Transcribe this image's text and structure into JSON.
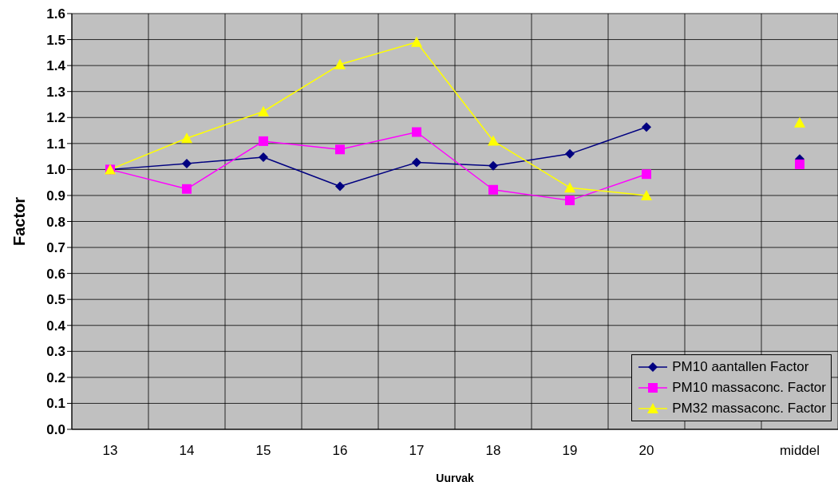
{
  "chart_data": {
    "type": "line",
    "xlabel": "Uurvak",
    "ylabel": "Factor",
    "categories": [
      "13",
      "14",
      "15",
      "16",
      "17",
      "18",
      "19",
      "20",
      null,
      "middel"
    ],
    "series": [
      {
        "name": "PM10 aantallen Factor",
        "color": "#000080",
        "marker": "diamond",
        "values": [
          1.0,
          1.023,
          1.047,
          0.935,
          1.027,
          1.014,
          1.06,
          1.163,
          null,
          1.04
        ]
      },
      {
        "name": "PM10 massaconc. Factor",
        "color": "#ff00ff",
        "marker": "square",
        "values": [
          1.0,
          0.925,
          1.109,
          1.077,
          1.144,
          0.922,
          0.881,
          0.982,
          null,
          1.02
        ]
      },
      {
        "name": "PM32 massaconc. Factor",
        "color": "#ffff00",
        "marker": "triangle",
        "values": [
          1.0,
          1.12,
          1.223,
          1.404,
          1.49,
          1.11,
          0.93,
          0.9,
          null,
          1.18
        ]
      }
    ],
    "ylim": [
      0,
      1.6
    ],
    "yticks": [
      {
        "value": 0,
        "label": "0.0"
      },
      {
        "value": 0.1,
        "label": "0.1"
      },
      {
        "value": 0.2,
        "label": "0.2"
      },
      {
        "value": 0.3,
        "label": "0.3"
      },
      {
        "value": 0.4,
        "label": "0.4"
      },
      {
        "value": 0.5,
        "label": "0.5"
      },
      {
        "value": 0.6,
        "label": "0.6"
      },
      {
        "value": 0.7,
        "label": "0.7"
      },
      {
        "value": 0.8,
        "label": "0.8"
      },
      {
        "value": 0.9,
        "label": "0.9"
      },
      {
        "value": 1.0,
        "label": "1.0"
      },
      {
        "value": 1.1,
        "label": "1.1"
      },
      {
        "value": 1.2,
        "label": "1.2"
      },
      {
        "value": 1.3,
        "label": "1.3"
      },
      {
        "value": 1.4,
        "label": "1.4"
      },
      {
        "value": 1.5,
        "label": "1.5"
      },
      {
        "value": 1.6,
        "label": "1.6"
      }
    ],
    "grid": true,
    "legend": "bottom right"
  }
}
